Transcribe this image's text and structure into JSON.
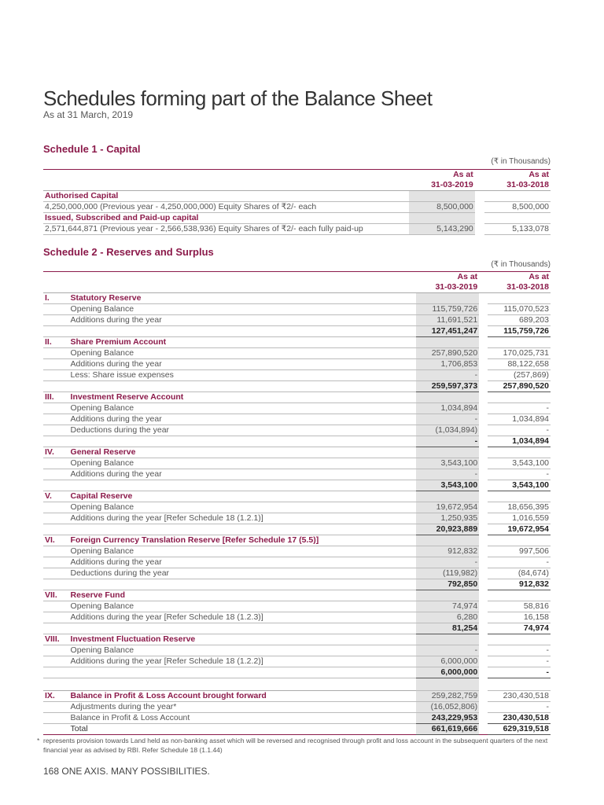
{
  "title": "Schedules forming part of the Balance Sheet",
  "subtitle": "As at 31 March, 2019",
  "schedule1": {
    "title": "Schedule 1 - Capital",
    "unit": "(₹ in Thousands)",
    "col_headers": [
      [
        "As at",
        "31-03-2019"
      ],
      [
        "As at",
        "31-03-2018"
      ]
    ],
    "rows": [
      {
        "type": "section",
        "label": "Authorised Capital",
        "v1": "",
        "v2": ""
      },
      {
        "type": "item",
        "label": "4,250,000,000 (Previous year - 4,250,000,000) Equity Shares of ₹2/- each",
        "v1": "8,500,000",
        "v2": "8,500,000"
      },
      {
        "type": "section",
        "label": "Issued, Subscribed and Paid-up capital",
        "v1": "",
        "v2": ""
      },
      {
        "type": "item",
        "label": "2,571,644,871 (Previous year - 2,566,538,936) Equity Shares of ₹2/- each fully paid-up",
        "v1": "5,143,290",
        "v2": "5,133,078"
      }
    ]
  },
  "schedule2": {
    "title": "Schedule 2 - Reserves and Surplus",
    "unit": "(₹ in Thousands)",
    "col_headers": [
      [
        "As at",
        "31-03-2019"
      ],
      [
        "As at",
        "31-03-2018"
      ]
    ],
    "rows": [
      {
        "type": "section",
        "roman": "I.",
        "label": "Statutory Reserve",
        "v1": "",
        "v2": ""
      },
      {
        "type": "item",
        "label": "Opening Balance",
        "v1": "115,759,726",
        "v2": "115,070,523"
      },
      {
        "type": "item",
        "label": "Additions during the year",
        "v1": "11,691,521",
        "v2": "689,203"
      },
      {
        "type": "total",
        "label": "",
        "v1": "127,451,247",
        "v2": "115,759,726"
      },
      {
        "type": "section",
        "roman": "II.",
        "label": "Share Premium Account",
        "v1": "",
        "v2": ""
      },
      {
        "type": "item",
        "label": "Opening Balance",
        "v1": "257,890,520",
        "v2": "170,025,731"
      },
      {
        "type": "item",
        "label": "Additions during the year",
        "v1": "1,706,853",
        "v2": "88,122,658"
      },
      {
        "type": "item",
        "label": "Less: Share issue expenses",
        "v1": "-",
        "v2": "(257,869)"
      },
      {
        "type": "total",
        "label": "",
        "v1": "259,597,373",
        "v2": "257,890,520"
      },
      {
        "type": "section",
        "roman": "III.",
        "label": "Investment Reserve Account",
        "v1": "",
        "v2": ""
      },
      {
        "type": "item",
        "label": "Opening Balance",
        "v1": "1,034,894",
        "v2": "-"
      },
      {
        "type": "item",
        "label": "Additions during the year",
        "v1": "-",
        "v2": "1,034,894"
      },
      {
        "type": "item",
        "label": "Deductions during the year",
        "v1": "(1,034,894)",
        "v2": "-"
      },
      {
        "type": "total",
        "label": "",
        "v1": "-",
        "v2": "1,034,894"
      },
      {
        "type": "section",
        "roman": "IV.",
        "label": "General Reserve",
        "v1": "",
        "v2": ""
      },
      {
        "type": "item",
        "label": "Opening Balance",
        "v1": "3,543,100",
        "v2": "3,543,100"
      },
      {
        "type": "item",
        "label": "Additions during the year",
        "v1": "-",
        "v2": "-"
      },
      {
        "type": "total",
        "label": "",
        "v1": "3,543,100",
        "v2": "3,543,100"
      },
      {
        "type": "section",
        "roman": "V.",
        "label": "Capital Reserve",
        "v1": "",
        "v2": ""
      },
      {
        "type": "item",
        "label": "Opening Balance",
        "v1": "19,672,954",
        "v2": "18,656,395"
      },
      {
        "type": "item",
        "label": "Additions during the year [Refer Schedule 18 (1.2.1)]",
        "v1": "1,250,935",
        "v2": "1,016,559"
      },
      {
        "type": "total",
        "label": "",
        "v1": "20,923,889",
        "v2": "19,672,954"
      },
      {
        "type": "section",
        "roman": "VI.",
        "label": "Foreign Currency Translation Reserve [Refer Schedule 17 (5.5)]",
        "v1": "",
        "v2": ""
      },
      {
        "type": "item",
        "label": "Opening Balance",
        "v1": "912,832",
        "v2": "997,506"
      },
      {
        "type": "item",
        "label": "Additions during the year",
        "v1": "-",
        "v2": "-"
      },
      {
        "type": "item",
        "label": "Deductions during the year",
        "v1": "(119,982)",
        "v2": "(84,674)"
      },
      {
        "type": "total",
        "label": "",
        "v1": "792,850",
        "v2": "912,832"
      },
      {
        "type": "section",
        "roman": "VII.",
        "label": "Reserve Fund",
        "v1": "",
        "v2": ""
      },
      {
        "type": "item",
        "label": "Opening Balance",
        "v1": "74,974",
        "v2": "58,816"
      },
      {
        "type": "item",
        "label": "Additions during the year [Refer Schedule 18 (1.2.3)]",
        "v1": "6,280",
        "v2": "16,158"
      },
      {
        "type": "total",
        "label": "",
        "v1": "81,254",
        "v2": "74,974"
      },
      {
        "type": "section",
        "roman": "VIII.",
        "label": "Investment Fluctuation Reserve",
        "v1": "",
        "v2": ""
      },
      {
        "type": "item",
        "label": "Opening Balance",
        "v1": "-",
        "v2": "-"
      },
      {
        "type": "item",
        "label": "Additions during the year [Refer Schedule 18 (1.2.2)]",
        "v1": "6,000,000",
        "v2": "-"
      },
      {
        "type": "total",
        "label": "",
        "v1": "6,000,000",
        "v2": "-"
      },
      {
        "type": "blank",
        "label": "",
        "v1": "",
        "v2": ""
      },
      {
        "type": "section",
        "roman": "IX.",
        "label": "Balance in Profit & Loss Account brought forward",
        "v1": "259,282,759",
        "v2": "230,430,518"
      },
      {
        "type": "item",
        "label": "Adjustments during the year*",
        "v1": "(16,052,806)",
        "v2": "-"
      },
      {
        "type": "total",
        "label": "Balance in Profit & Loss Account",
        "v1": "243,229,953",
        "v2": "230,430,518"
      },
      {
        "type": "final",
        "label": "Total",
        "v1": "661,619,666",
        "v2": "629,319,518"
      }
    ]
  },
  "footnote": {
    "marker": "*",
    "text": "represents provision towards Land held as non-banking asset which will be reversed and recognised through profit and loss account in the subsequent quarters of the next financial year as advised by RBI. Refer Schedule 18 (1.1.44)"
  },
  "page_footer": "168 ONE AXIS. MANY POSSIBILITIES."
}
